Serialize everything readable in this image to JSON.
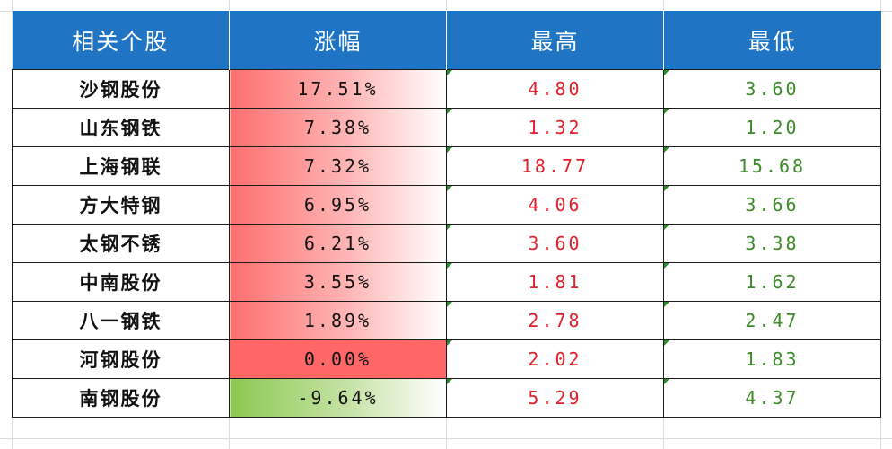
{
  "table": {
    "headers": {
      "name": "相关个股",
      "change": "涨幅",
      "high": "最高",
      "low": "最低"
    },
    "rows": [
      {
        "name": "沙钢股份",
        "change": "17.51%",
        "high": "4.80",
        "low": "3.60"
      },
      {
        "name": "山东钢铁",
        "change": "7.38%",
        "high": "1.32",
        "low": "1.20"
      },
      {
        "name": "上海钢联",
        "change": "7.32%",
        "high": "18.77",
        "low": "15.68"
      },
      {
        "name": "方大特钢",
        "change": "6.95%",
        "high": "4.06",
        "low": "3.66"
      },
      {
        "name": "太钢不锈",
        "change": "6.21%",
        "high": "3.60",
        "low": "3.38"
      },
      {
        "name": "中南股份",
        "change": "3.55%",
        "high": "1.81",
        "low": "1.62"
      },
      {
        "name": "八一钢铁",
        "change": "1.89%",
        "high": "2.78",
        "low": "2.47"
      },
      {
        "name": "河钢股份",
        "change": "0.00%",
        "high": "2.02",
        "low": "1.83"
      },
      {
        "name": "南钢股份",
        "change": "-9.64%",
        "high": "5.29",
        "low": "4.37"
      }
    ]
  },
  "colors": {
    "header_background": "#1f74c4",
    "header_text": "#ffffff",
    "high_text": "#e0202a",
    "low_text": "#3d8a2a",
    "gain_fill": "#ff6f6f",
    "loss_fill": "#8cc850"
  }
}
